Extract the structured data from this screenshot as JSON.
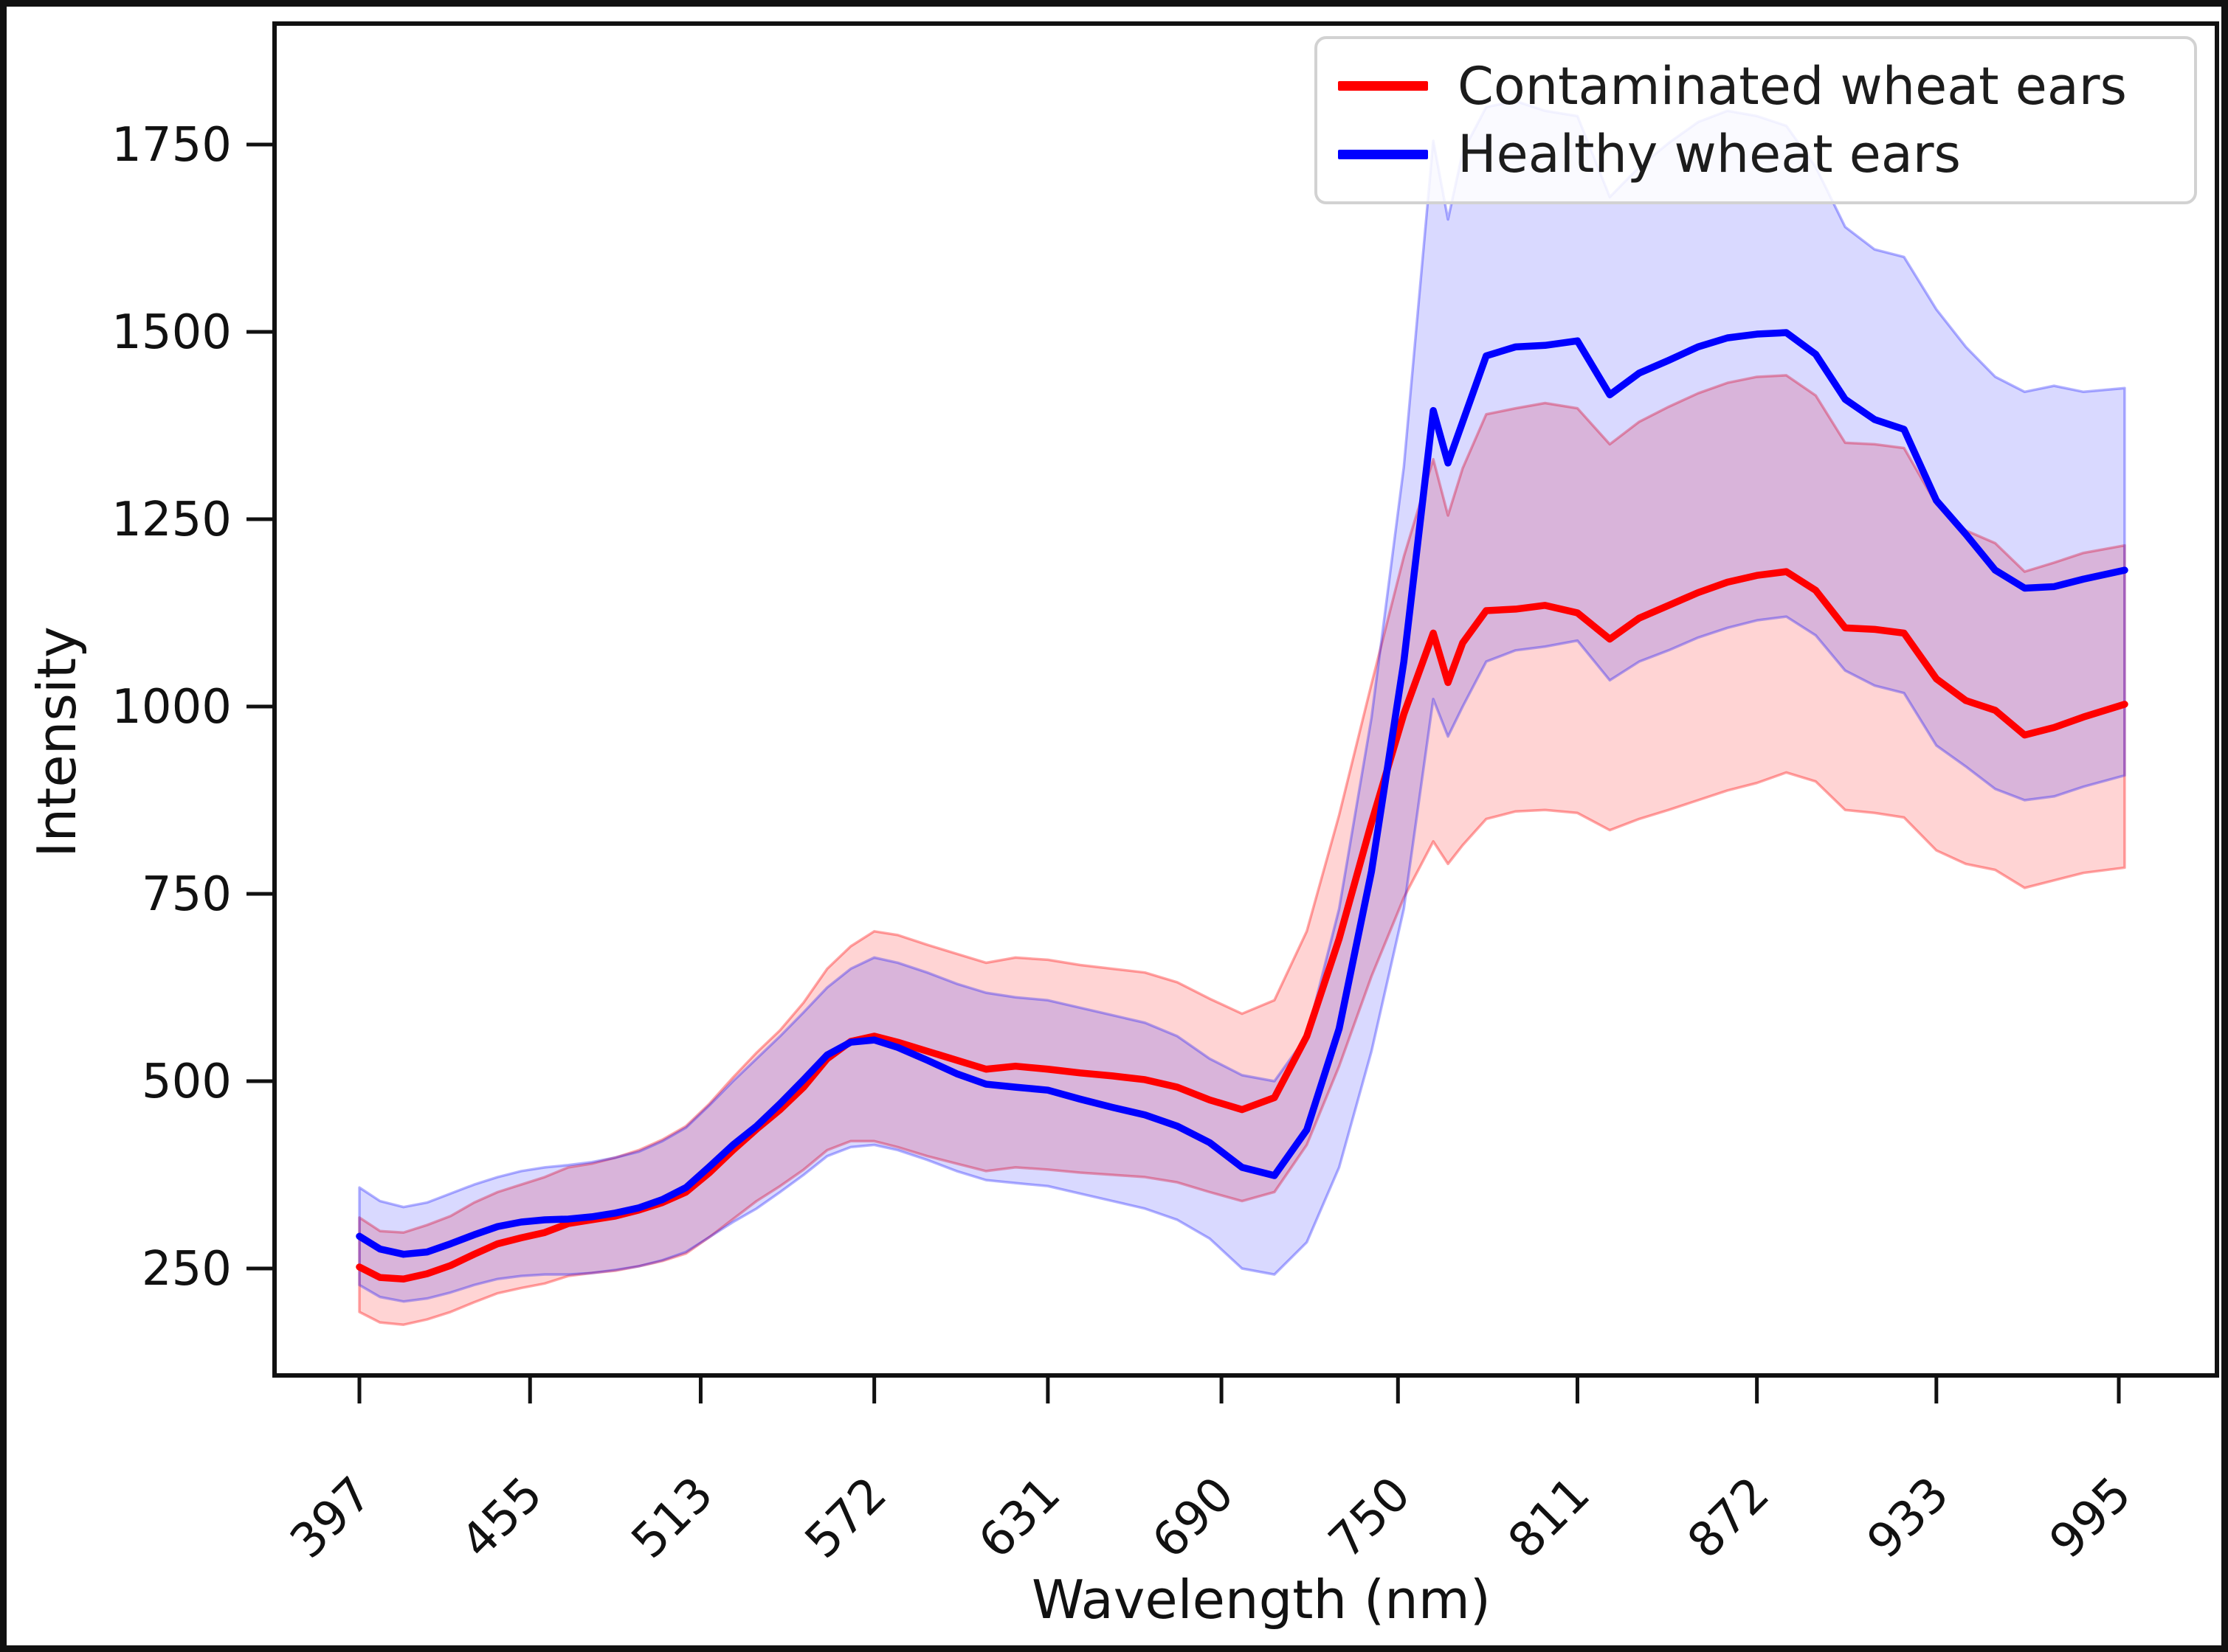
{
  "figure": {
    "ylabel": "Intensity",
    "xlabel": "Wavelength (nm)",
    "background_color": "#ffffff",
    "frame_color": "#111111"
  },
  "legend": {
    "position": "upper right",
    "items": [
      {
        "label": "Contaminated wheat ears",
        "color": "#ff0000"
      },
      {
        "label": "Healthy wheat ears",
        "color": "#0000ff"
      }
    ]
  },
  "chart_data": {
    "type": "line",
    "title": "",
    "xlabel": "Wavelength (nm)",
    "ylabel": "Intensity",
    "grid": false,
    "legend_position": "upper right",
    "x_ticks": [
      397,
      455,
      513,
      572,
      631,
      690,
      750,
      811,
      872,
      933,
      995
    ],
    "y_ticks": [
      250,
      500,
      750,
      1000,
      1250,
      1500,
      1750
    ],
    "xlim": [
      368,
      1028
    ],
    "ylim": [
      107,
      1911
    ],
    "x_tick_rotation_deg": 45,
    "series": [
      {
        "name": "Contaminated wheat ears",
        "color": "#ff0000",
        "band_fill": "rgba(255,0,0,0.17)",
        "band_edge": "rgba(255,0,0,0.35)",
        "x": [
          397,
          404,
          412,
          420,
          428,
          436,
          444,
          452,
          460,
          468,
          476,
          484,
          492,
          500,
          508,
          516,
          524,
          532,
          540,
          548,
          556,
          564,
          572,
          580,
          590,
          600,
          610,
          620,
          631,
          642,
          653,
          664,
          675,
          686,
          697,
          708,
          719,
          730,
          741,
          752,
          762,
          767,
          772,
          780,
          790,
          800,
          811,
          822,
          832,
          842,
          852,
          862,
          872,
          882,
          892,
          902,
          912,
          922,
          933,
          943,
          953,
          963,
          973,
          983,
          997
        ],
        "mean": [
          252,
          238,
          236,
          243,
          254,
          269,
          283,
          291,
          298,
          310,
          315,
          320,
          328,
          338,
          352,
          378,
          408,
          436,
          462,
          492,
          530,
          553,
          560,
          552,
          540,
          528,
          516,
          520,
          516,
          511,
          507,
          502,
          492,
          475,
          462,
          478,
          560,
          690,
          845,
          990,
          1098,
          1032,
          1085,
          1128,
          1130,
          1135,
          1125,
          1090,
          1118,
          1135,
          1152,
          1166,
          1175,
          1180,
          1155,
          1105,
          1103,
          1098,
          1037,
          1008,
          995,
          962,
          972,
          986,
          1003
        ],
        "lower": [
          192,
          178,
          175,
          182,
          192,
          205,
          217,
          224,
          230,
          240,
          244,
          247,
          253,
          260,
          270,
          292,
          316,
          340,
          360,
          382,
          408,
          420,
          420,
          412,
          400,
          390,
          380,
          385,
          382,
          378,
          375,
          372,
          365,
          352,
          340,
          352,
          415,
          520,
          640,
          745,
          820,
          790,
          815,
          850,
          860,
          862,
          858,
          835,
          850,
          862,
          875,
          888,
          898,
          912,
          900,
          862,
          858,
          852,
          808,
          790,
          782,
          758,
          768,
          778,
          785
        ],
        "upper": [
          318,
          300,
          298,
          308,
          320,
          338,
          352,
          362,
          372,
          385,
          390,
          398,
          408,
          422,
          440,
          470,
          505,
          538,
          568,
          605,
          650,
          680,
          700,
          695,
          682,
          670,
          658,
          665,
          662,
          655,
          650,
          645,
          632,
          610,
          590,
          608,
          700,
          855,
          1030,
          1200,
          1330,
          1255,
          1318,
          1390,
          1398,
          1405,
          1398,
          1350,
          1380,
          1400,
          1418,
          1432,
          1440,
          1442,
          1415,
          1352,
          1350,
          1345,
          1270,
          1235,
          1218,
          1180,
          1192,
          1205,
          1215
        ]
      },
      {
        "name": "Healthy wheat ears",
        "color": "#0000ff",
        "band_fill": "rgba(0,0,255,0.15)",
        "band_edge": "rgba(0,0,255,0.30)",
        "x": [
          397,
          404,
          412,
          420,
          428,
          436,
          444,
          452,
          460,
          468,
          476,
          484,
          492,
          500,
          508,
          516,
          524,
          532,
          540,
          548,
          556,
          564,
          572,
          580,
          590,
          600,
          610,
          620,
          631,
          642,
          653,
          664,
          675,
          686,
          697,
          708,
          719,
          730,
          741,
          752,
          762,
          767,
          772,
          780,
          790,
          800,
          811,
          822,
          832,
          842,
          852,
          862,
          872,
          882,
          892,
          902,
          912,
          922,
          933,
          943,
          953,
          963,
          973,
          983,
          997
        ],
        "mean": [
          293,
          276,
          269,
          272,
          283,
          295,
          306,
          312,
          315,
          316,
          319,
          324,
          331,
          342,
          358,
          386,
          415,
          440,
          470,
          502,
          535,
          552,
          555,
          545,
          528,
          510,
          496,
          492,
          488,
          476,
          465,
          455,
          440,
          418,
          385,
          374,
          435,
          570,
          780,
          1060,
          1395,
          1325,
          1380,
          1468,
          1480,
          1482,
          1488,
          1416,
          1445,
          1462,
          1480,
          1492,
          1497,
          1499,
          1470,
          1410,
          1383,
          1370,
          1275,
          1230,
          1182,
          1158,
          1160,
          1170,
          1182
        ],
        "lower": [
          228,
          212,
          206,
          210,
          218,
          228,
          236,
          240,
          242,
          242,
          244,
          248,
          253,
          261,
          272,
          292,
          312,
          330,
          352,
          375,
          400,
          412,
          415,
          408,
          395,
          380,
          368,
          364,
          360,
          350,
          340,
          330,
          315,
          290,
          250,
          242,
          285,
          385,
          540,
          730,
          1010,
          960,
          1000,
          1060,
          1075,
          1080,
          1088,
          1035,
          1060,
          1075,
          1092,
          1105,
          1115,
          1120,
          1095,
          1048,
          1028,
          1018,
          948,
          920,
          890,
          875,
          880,
          893,
          908
        ],
        "upper": [
          358,
          340,
          332,
          338,
          350,
          362,
          372,
          380,
          385,
          388,
          392,
          398,
          406,
          420,
          438,
          468,
          500,
          530,
          560,
          592,
          625,
          650,
          665,
          658,
          645,
          630,
          618,
          612,
          608,
          598,
          588,
          578,
          560,
          530,
          508,
          500,
          560,
          730,
          985,
          1320,
          1755,
          1650,
          1740,
          1800,
          1808,
          1795,
          1788,
          1680,
          1720,
          1752,
          1780,
          1795,
          1788,
          1775,
          1720,
          1640,
          1610,
          1600,
          1530,
          1480,
          1440,
          1420,
          1428,
          1420,
          1425
        ]
      }
    ]
  }
}
